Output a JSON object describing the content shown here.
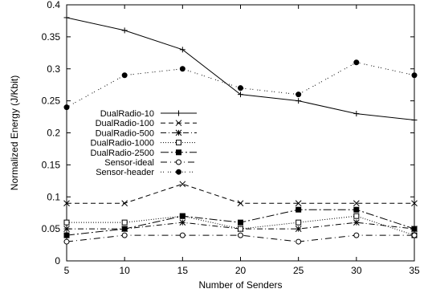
{
  "chart_data": {
    "type": "line",
    "xlabel": "Number of Senders",
    "ylabel": "Normalized Energy (J/Kbit)",
    "xlim": [
      5,
      35
    ],
    "ylim": [
      0,
      0.4
    ],
    "x_ticks": [
      "5",
      "10",
      "15",
      "20",
      "25",
      "30",
      "35"
    ],
    "y_ticks": [
      "0",
      "0.05",
      "0.1",
      "0.15",
      "0.2",
      "0.25",
      "0.3",
      "0.35",
      "0.4"
    ],
    "grid": false,
    "legend_position": "center-left",
    "x": [
      5,
      10,
      15,
      20,
      25,
      30,
      35
    ],
    "series": [
      {
        "name": "DualRadio-10",
        "marker": "plus",
        "dash": "solid",
        "values": [
          0.38,
          0.36,
          0.33,
          0.26,
          0.25,
          0.23,
          0.22
        ]
      },
      {
        "name": "DualRadio-100",
        "marker": "cross",
        "dash": "dashed",
        "values": [
          0.09,
          0.09,
          0.12,
          0.09,
          0.09,
          0.09,
          0.09
        ]
      },
      {
        "name": "DualRadio-500",
        "marker": "star",
        "dash": "dashdot",
        "values": [
          0.05,
          0.05,
          0.06,
          0.05,
          0.05,
          0.06,
          0.05
        ]
      },
      {
        "name": "DualRadio-1000",
        "marker": "square-open",
        "dash": "dotted",
        "values": [
          0.06,
          0.06,
          0.07,
          0.05,
          0.06,
          0.07,
          0.04
        ]
      },
      {
        "name": "DualRadio-2500",
        "marker": "square-filled",
        "dash": "dashdot-long",
        "values": [
          0.04,
          0.05,
          0.07,
          0.06,
          0.08,
          0.08,
          0.05
        ]
      },
      {
        "name": "Sensor-ideal",
        "marker": "circle-open",
        "dash": "dashdot-sparse",
        "values": [
          0.03,
          0.04,
          0.04,
          0.04,
          0.03,
          0.04,
          0.04
        ]
      },
      {
        "name": "Sensor-header",
        "marker": "circle-filled",
        "dash": "dotdot",
        "values": [
          0.24,
          0.29,
          0.3,
          0.27,
          0.26,
          0.31,
          0.29
        ]
      }
    ]
  }
}
